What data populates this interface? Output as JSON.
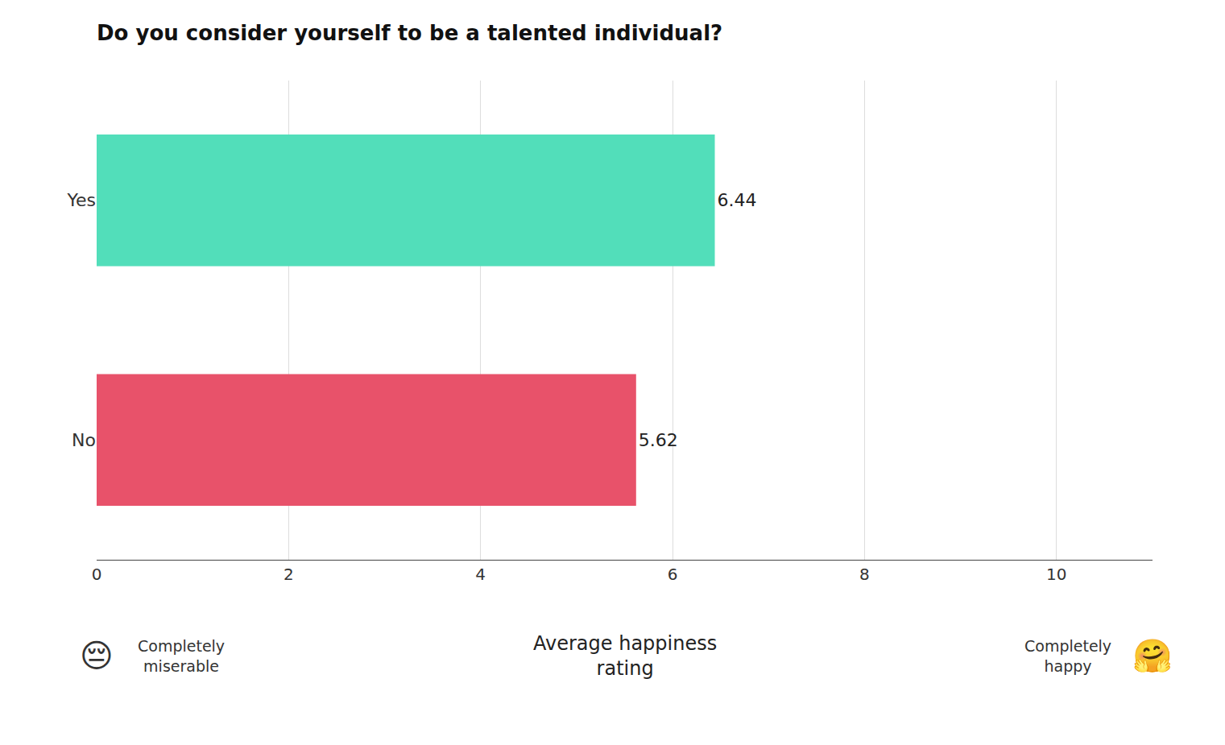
{
  "chart_data": {
    "type": "bar",
    "orientation": "horizontal",
    "title": "Do you consider yourself to be a talented individual?",
    "categories": [
      "No",
      "Yes"
    ],
    "values": [
      5.62,
      6.44
    ],
    "colors": [
      "#E8526A",
      "#52DEBA"
    ],
    "data_labels": true,
    "xlim": [
      0,
      11
    ],
    "xticks": [
      0,
      2,
      4,
      6,
      8,
      10
    ],
    "grid": true,
    "xlabel": "Average happiness\nrating",
    "annotations": [
      "😔",
      "Completely\nmiserable",
      "Completely\nhappy",
      "🤗"
    ]
  }
}
